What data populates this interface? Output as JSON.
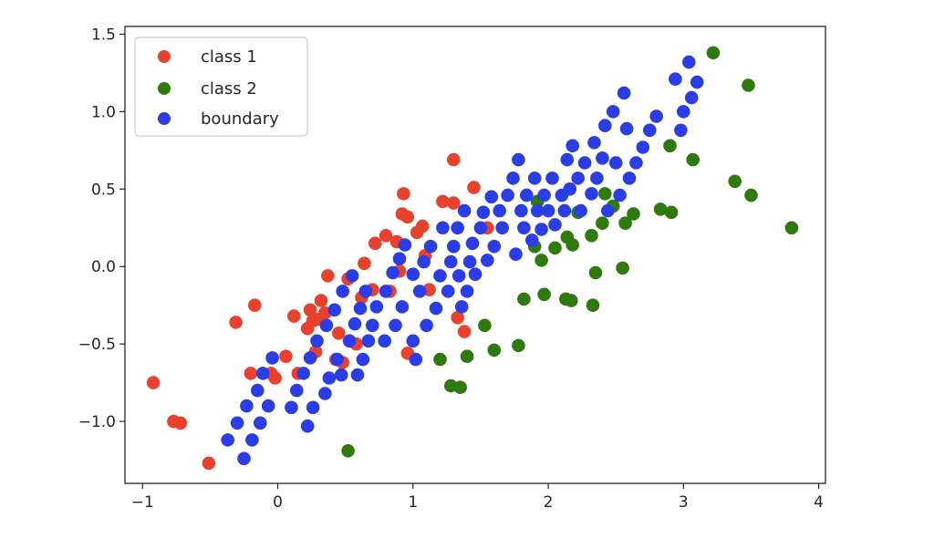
{
  "chart_data": {
    "type": "scatter",
    "xlim": [
      -1.13,
      4.05
    ],
    "ylim": [
      -1.4,
      1.55
    ],
    "xticks": [
      -1,
      0,
      1,
      2,
      3,
      4
    ],
    "xtick_labels": [
      "−1",
      "0",
      "1",
      "2",
      "3",
      "4"
    ],
    "yticks": [
      -1.0,
      -0.5,
      0.0,
      0.5,
      1.0,
      1.5
    ],
    "ytick_labels": [
      "−1.0",
      "−0.5",
      "0.0",
      "0.5",
      "1.0",
      "1.5"
    ],
    "grid": false,
    "legend_position": "top-left",
    "series": [
      {
        "name": "class 1",
        "color": "#e8422e",
        "points": [
          [
            -0.92,
            -0.75
          ],
          [
            -0.77,
            -1.0
          ],
          [
            -0.72,
            -1.01
          ],
          [
            -0.51,
            -1.27
          ],
          [
            -0.31,
            -0.36
          ],
          [
            -0.2,
            -0.69
          ],
          [
            -0.17,
            -0.25
          ],
          [
            -0.05,
            -0.69
          ],
          [
            -0.02,
            -0.72
          ],
          [
            0.06,
            -0.58
          ],
          [
            0.12,
            -0.32
          ],
          [
            0.15,
            -0.69
          ],
          [
            0.22,
            -0.4
          ],
          [
            0.24,
            -0.28
          ],
          [
            0.28,
            -0.55
          ],
          [
            0.3,
            -0.34
          ],
          [
            0.32,
            -0.22
          ],
          [
            0.35,
            -0.3
          ],
          [
            0.37,
            -0.06
          ],
          [
            0.43,
            -0.6
          ],
          [
            0.48,
            -0.62
          ],
          [
            0.52,
            -0.08
          ],
          [
            0.58,
            -0.5
          ],
          [
            0.62,
            -0.2
          ],
          [
            0.64,
            0.02
          ],
          [
            0.7,
            -0.15
          ],
          [
            0.72,
            0.15
          ],
          [
            0.8,
            0.2
          ],
          [
            0.83,
            -0.16
          ],
          [
            0.88,
            0.16
          ],
          [
            0.9,
            -0.03
          ],
          [
            0.92,
            0.34
          ],
          [
            0.93,
            0.47
          ],
          [
            0.96,
            0.32
          ],
          [
            0.96,
            -0.56
          ],
          [
            1.03,
            0.22
          ],
          [
            1.07,
            0.26
          ],
          [
            1.09,
            0.07
          ],
          [
            1.12,
            -0.15
          ],
          [
            1.22,
            0.42
          ],
          [
            1.3,
            0.69
          ],
          [
            1.33,
            -0.33
          ],
          [
            1.38,
            -0.42
          ],
          [
            1.45,
            0.51
          ],
          [
            1.55,
            0.25
          ],
          [
            1.3,
            0.41
          ],
          [
            0.26,
            -0.35
          ],
          [
            0.45,
            -0.43
          ]
        ]
      },
      {
        "name": "class 2",
        "color": "#2f7a0d",
        "points": [
          [
            0.52,
            -1.19
          ],
          [
            1.2,
            -0.6
          ],
          [
            1.28,
            -0.77
          ],
          [
            1.35,
            -0.78
          ],
          [
            1.4,
            -0.58
          ],
          [
            1.53,
            -0.38
          ],
          [
            1.6,
            -0.54
          ],
          [
            1.78,
            -0.51
          ],
          [
            1.82,
            -0.21
          ],
          [
            1.92,
            0.42
          ],
          [
            1.95,
            0.04
          ],
          [
            1.97,
            -0.18
          ],
          [
            2.05,
            0.12
          ],
          [
            2.13,
            -0.21
          ],
          [
            2.17,
            -0.22
          ],
          [
            2.14,
            0.19
          ],
          [
            2.18,
            0.14
          ],
          [
            2.32,
            0.2
          ],
          [
            2.33,
            -0.25
          ],
          [
            2.35,
            -0.04
          ],
          [
            2.4,
            0.28
          ],
          [
            2.42,
            0.47
          ],
          [
            2.48,
            0.39
          ],
          [
            2.55,
            -0.01
          ],
          [
            2.57,
            0.28
          ],
          [
            2.63,
            0.34
          ],
          [
            2.83,
            0.37
          ],
          [
            2.91,
            0.35
          ],
          [
            2.9,
            0.78
          ],
          [
            3.07,
            0.69
          ],
          [
            3.22,
            1.38
          ],
          [
            3.38,
            0.55
          ],
          [
            3.48,
            1.17
          ],
          [
            3.5,
            0.46
          ],
          [
            3.8,
            0.25
          ],
          [
            1.9,
            0.13
          ],
          [
            2.22,
            0.35
          ]
        ]
      },
      {
        "name": "boundary",
        "color": "#2b3ee6",
        "points": [
          [
            -0.37,
            -1.12
          ],
          [
            -0.3,
            -1.01
          ],
          [
            -0.25,
            -1.24
          ],
          [
            -0.23,
            -0.9
          ],
          [
            -0.19,
            -1.12
          ],
          [
            -0.15,
            -0.8
          ],
          [
            -0.13,
            -1.01
          ],
          [
            -0.11,
            -0.69
          ],
          [
            -0.07,
            -0.9
          ],
          [
            -0.04,
            -0.59
          ],
          [
            0.1,
            -0.91
          ],
          [
            0.14,
            -0.8
          ],
          [
            0.19,
            -0.69
          ],
          [
            0.22,
            -1.03
          ],
          [
            0.24,
            -0.59
          ],
          [
            0.26,
            -0.91
          ],
          [
            0.29,
            -0.48
          ],
          [
            0.35,
            -0.82
          ],
          [
            0.36,
            -0.38
          ],
          [
            0.38,
            -0.72
          ],
          [
            0.42,
            -0.28
          ],
          [
            0.44,
            -0.6
          ],
          [
            0.47,
            -0.7
          ],
          [
            0.48,
            -0.16
          ],
          [
            0.53,
            -0.48
          ],
          [
            0.55,
            -0.06
          ],
          [
            0.57,
            -0.37
          ],
          [
            0.59,
            -0.7
          ],
          [
            0.61,
            -0.27
          ],
          [
            0.63,
            -0.6
          ],
          [
            0.65,
            -0.16
          ],
          [
            0.67,
            -0.48
          ],
          [
            0.7,
            -0.38
          ],
          [
            0.73,
            -0.26
          ],
          [
            0.79,
            -0.48
          ],
          [
            0.8,
            -0.16
          ],
          [
            0.85,
            -0.04
          ],
          [
            0.87,
            -0.38
          ],
          [
            0.9,
            0.05
          ],
          [
            0.92,
            -0.26
          ],
          [
            0.94,
            0.14
          ],
          [
            1.0,
            -0.48
          ],
          [
            1.02,
            -0.6
          ],
          [
            1.0,
            -0.05
          ],
          [
            1.05,
            -0.16
          ],
          [
            1.08,
            0.03
          ],
          [
            1.1,
            -0.38
          ],
          [
            1.13,
            0.13
          ],
          [
            1.17,
            -0.27
          ],
          [
            1.2,
            -0.06
          ],
          [
            1.22,
            0.25
          ],
          [
            1.26,
            -0.16
          ],
          [
            1.28,
            0.03
          ],
          [
            1.3,
            0.13
          ],
          [
            1.33,
            0.25
          ],
          [
            1.34,
            -0.06
          ],
          [
            1.36,
            -0.26
          ],
          [
            1.38,
            0.36
          ],
          [
            1.4,
            -0.16
          ],
          [
            1.42,
            0.03
          ],
          [
            1.44,
            0.15
          ],
          [
            1.46,
            -0.05
          ],
          [
            1.5,
            0.25
          ],
          [
            1.52,
            0.35
          ],
          [
            1.55,
            0.04
          ],
          [
            1.58,
            0.45
          ],
          [
            1.6,
            0.13
          ],
          [
            1.64,
            0.36
          ],
          [
            1.66,
            0.25
          ],
          [
            1.7,
            0.46
          ],
          [
            1.74,
            0.57
          ],
          [
            1.76,
            0.08
          ],
          [
            1.78,
            0.69
          ],
          [
            1.8,
            0.36
          ],
          [
            1.82,
            0.25
          ],
          [
            1.84,
            0.46
          ],
          [
            1.88,
            0.17
          ],
          [
            1.9,
            0.57
          ],
          [
            1.92,
            0.36
          ],
          [
            1.95,
            0.24
          ],
          [
            1.97,
            0.46
          ],
          [
            2.0,
            0.36
          ],
          [
            2.03,
            0.57
          ],
          [
            2.05,
            0.27
          ],
          [
            2.1,
            0.46
          ],
          [
            2.12,
            0.36
          ],
          [
            2.14,
            0.69
          ],
          [
            2.16,
            0.5
          ],
          [
            2.18,
            0.78
          ],
          [
            2.22,
            0.57
          ],
          [
            2.24,
            0.36
          ],
          [
            2.27,
            0.67
          ],
          [
            2.32,
            0.47
          ],
          [
            2.34,
            0.8
          ],
          [
            2.36,
            0.57
          ],
          [
            2.4,
            0.7
          ],
          [
            2.42,
            0.91
          ],
          [
            2.44,
            0.36
          ],
          [
            2.48,
            1.0
          ],
          [
            2.5,
            0.67
          ],
          [
            2.53,
            0.46
          ],
          [
            2.56,
            1.12
          ],
          [
            2.58,
            0.89
          ],
          [
            2.6,
            0.57
          ],
          [
            2.65,
            0.67
          ],
          [
            2.7,
            0.77
          ],
          [
            2.75,
            0.88
          ],
          [
            2.8,
            0.97
          ],
          [
            2.94,
            1.21
          ],
          [
            2.98,
            0.88
          ],
          [
            3.0,
            1.0
          ],
          [
            3.04,
            1.32
          ],
          [
            3.06,
            1.09
          ],
          [
            3.1,
            1.19
          ]
        ]
      }
    ]
  }
}
